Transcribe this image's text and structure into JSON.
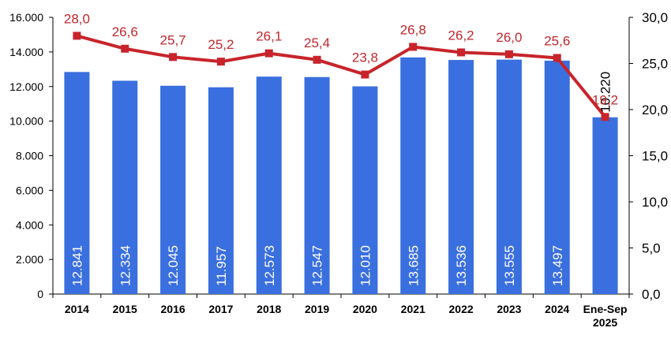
{
  "chart_data": {
    "type": "bar",
    "title": "",
    "xlabel": "",
    "ylabel": "",
    "categories": [
      "2014",
      "2015",
      "2016",
      "2017",
      "2018",
      "2019",
      "2020",
      "2021",
      "2022",
      "2023",
      "2024",
      "Ene-Sep 2025"
    ],
    "category_lines": [
      [
        "2014"
      ],
      [
        "2015"
      ],
      [
        "2016"
      ],
      [
        "2017"
      ],
      [
        "2018"
      ],
      [
        "2019"
      ],
      [
        "2020"
      ],
      [
        "2021"
      ],
      [
        "2022"
      ],
      [
        "2023"
      ],
      [
        "2024"
      ],
      [
        "Ene-Sep",
        "2025"
      ]
    ],
    "series": [
      {
        "name": "bars",
        "type": "bar",
        "axis": "left",
        "color": "#3a6fdf",
        "values": [
          12841,
          12334,
          12045,
          11957,
          12573,
          12547,
          12010,
          13685,
          13536,
          13555,
          13497,
          10220
        ],
        "labels": [
          "12.841",
          "12.334",
          "12.045",
          "11.957",
          "12.573",
          "12.547",
          "12.010",
          "13.685",
          "13.536",
          "13.555",
          "13.497",
          "10.220"
        ]
      },
      {
        "name": "line",
        "type": "line",
        "axis": "right",
        "color": "#c8242b",
        "values": [
          28.0,
          26.6,
          25.7,
          25.2,
          26.1,
          25.4,
          23.8,
          26.8,
          26.2,
          26.0,
          25.6,
          19.2
        ],
        "labels": [
          "28,0",
          "26,6",
          "25,7",
          "25,2",
          "26,1",
          "25,4",
          "23,8",
          "26,8",
          "26,2",
          "26,0",
          "25,6",
          "19,2"
        ]
      }
    ],
    "left_axis": {
      "ylim": [
        0,
        16000
      ],
      "ticks": [
        0,
        2000,
        4000,
        6000,
        8000,
        10000,
        12000,
        14000,
        16000
      ],
      "tick_labels": [
        "0",
        "2.000",
        "4.000",
        "6.000",
        "8.000",
        "10.000",
        "12.000",
        "14.000",
        "16.000"
      ]
    },
    "right_axis": {
      "ylim": [
        0,
        30
      ],
      "ticks": [
        0,
        5,
        10,
        15,
        20,
        25,
        30
      ],
      "tick_labels": [
        "0,0",
        "5,0",
        "10,0",
        "15,0",
        "20,0",
        "25,0",
        "30,0"
      ]
    },
    "grid": false,
    "legend": "none"
  }
}
